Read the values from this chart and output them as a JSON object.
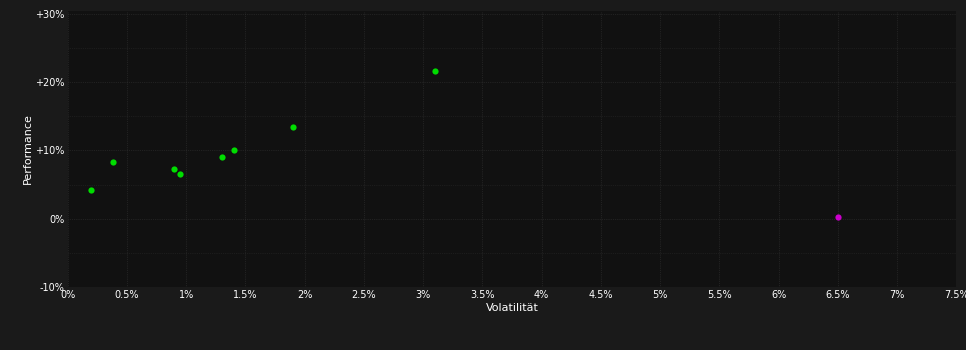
{
  "background_color": "#1a1a1a",
  "plot_bg_color": "#111111",
  "grid_color": "#333333",
  "text_color": "#ffffff",
  "xlabel": "Volatilität",
  "ylabel": "Performance",
  "xlim": [
    0,
    0.075
  ],
  "ylim": [
    -0.1,
    0.305
  ],
  "xtick_major_step": 0.005,
  "ytick_major_step": 0.1,
  "green_points": [
    [
      0.002,
      0.042
    ],
    [
      0.0038,
      0.083
    ],
    [
      0.009,
      0.073
    ],
    [
      0.0095,
      0.065
    ],
    [
      0.013,
      0.09
    ],
    [
      0.014,
      0.101
    ],
    [
      0.019,
      0.135
    ],
    [
      0.031,
      0.216
    ]
  ],
  "magenta_points": [
    [
      0.065,
      0.003
    ]
  ],
  "green_color": "#00dd00",
  "magenta_color": "#cc00cc",
  "marker_size": 20
}
